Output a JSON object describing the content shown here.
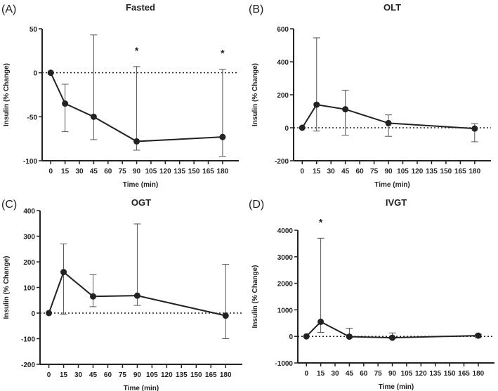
{
  "chart_data": [
    {
      "type": "line",
      "panel_label": "(A)",
      "title": "Fasted",
      "xlabel": "Time (min)",
      "ylabel": "Insulin (% Change)",
      "xticks": [
        0,
        15,
        30,
        45,
        60,
        75,
        90,
        105,
        120,
        135,
        150,
        165,
        180
      ],
      "yticks": [
        -100,
        -50,
        0,
        50
      ],
      "ylim": [
        -100,
        50
      ],
      "xlim": [
        -9,
        197
      ],
      "x": [
        0,
        15,
        45,
        90,
        180
      ],
      "y": [
        0,
        -35,
        -50,
        -78,
        -73
      ],
      "err_low": [
        0,
        -67,
        -76,
        -88,
        -95
      ],
      "err_high": [
        0,
        -13,
        43,
        7,
        4
      ],
      "significance": [
        {
          "x": 90,
          "label": "*"
        },
        {
          "x": 180,
          "label": "*"
        }
      ],
      "reference_line": 0
    },
    {
      "type": "line",
      "panel_label": "(B)",
      "title": "OLT",
      "xlabel": "Time (min)",
      "ylabel": "Insulin (% Change)",
      "xticks": [
        0,
        15,
        30,
        45,
        60,
        75,
        90,
        105,
        120,
        135,
        150,
        165,
        180
      ],
      "yticks": [
        -200,
        0,
        200,
        400,
        600
      ],
      "ylim": [
        -200,
        600
      ],
      "xlim": [
        -9,
        197
      ],
      "x": [
        0,
        15,
        45,
        90,
        180
      ],
      "y": [
        0,
        140,
        112,
        28,
        -5
      ],
      "err_low": [
        0,
        -20,
        -45,
        -52,
        -85
      ],
      "err_high": [
        0,
        545,
        228,
        78,
        25
      ],
      "significance": [],
      "reference_line": 0
    },
    {
      "type": "line",
      "panel_label": "(C)",
      "title": "OGT",
      "xlabel": "Time (min)",
      "ylabel": "Insulin (% Change)",
      "xticks": [
        0,
        15,
        30,
        45,
        60,
        75,
        90,
        105,
        120,
        135,
        150,
        165,
        180
      ],
      "yticks": [
        -200,
        -100,
        0,
        100,
        200,
        300,
        400
      ],
      "ylim": [
        -200,
        400
      ],
      "xlim": [
        -9,
        197
      ],
      "x": [
        0,
        15,
        45,
        90,
        180
      ],
      "y": [
        0,
        160,
        65,
        68,
        -10
      ],
      "err_low": [
        0,
        -5,
        25,
        30,
        -100
      ],
      "err_high": [
        0,
        270,
        150,
        348,
        190
      ],
      "significance": [],
      "reference_line": 0
    },
    {
      "type": "line",
      "panel_label": "(D)",
      "title": "IVGT",
      "xlabel": "Time (min)",
      "ylabel": "Insulin (% Change)",
      "xticks": [
        0,
        15,
        30,
        45,
        60,
        75,
        90,
        105,
        120,
        135,
        150,
        165,
        180
      ],
      "yticks": [
        -1000,
        0,
        1000,
        2000,
        3000,
        4000
      ],
      "ylim": [
        -1000,
        4000
      ],
      "xlim": [
        -9,
        197
      ],
      "x": [
        0,
        15,
        45,
        90,
        180
      ],
      "y": [
        0,
        550,
        -10,
        -50,
        30
      ],
      "err_low": [
        0,
        150,
        -50,
        -80,
        -50
      ],
      "err_high": [
        0,
        3700,
        310,
        130,
        80
      ],
      "significance": [
        {
          "x": 15,
          "label": "*"
        }
      ],
      "reference_line": 0
    }
  ]
}
